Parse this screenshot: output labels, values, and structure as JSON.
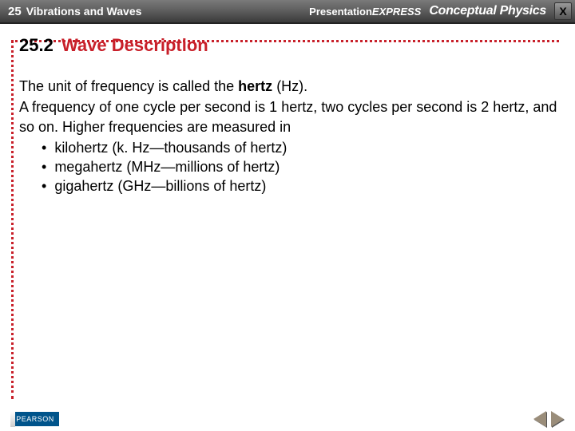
{
  "topbar": {
    "chapter_num": "25",
    "chapter_title": "Vibrations and Waves",
    "brand_presentation": "Presentation",
    "brand_express": "EXPRESS",
    "brand_book": "Conceptual Physics",
    "close_label": "X"
  },
  "section": {
    "number": "25.2",
    "title": "Wave Description"
  },
  "body": {
    "para1_a": "The unit of frequency is called the ",
    "para1_bold": "hertz",
    "para1_b": " (Hz).",
    "para2": "A frequency of one cycle per second is 1 hertz, two cycles per second is 2 hertz, and so on. Higher frequencies are measured in",
    "bullets": [
      "kilohertz (k. Hz—thousands of hertz)",
      "megahertz (MHz—millions of hertz)",
      "gigahertz (GHz—billions of hertz)"
    ]
  },
  "footer": {
    "publisher": "PEARSON"
  },
  "colors": {
    "accent": "#c8202a",
    "topbar_bg": "#5c5c5c",
    "text": "#000000",
    "publisher_bg": "#00548b"
  }
}
